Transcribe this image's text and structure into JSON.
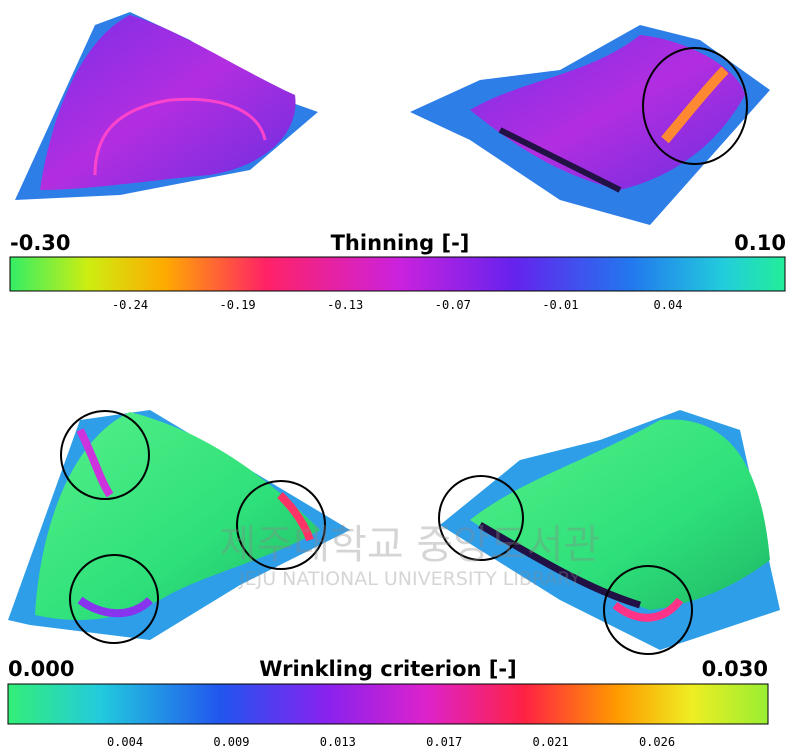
{
  "thinning": {
    "min_label": "-0.30",
    "title": "Thinning [-]",
    "max_label": "0.10",
    "ticks": [
      "-0.24",
      "-0.19",
      "-0.13",
      "-0.07",
      "-0.01",
      "0.04"
    ]
  },
  "wrinkling": {
    "min_label": "0.000",
    "title": "Wrinkling criterion [-]",
    "max_label": "0.030",
    "ticks": [
      "0.004",
      "0.009",
      "0.013",
      "0.017",
      "0.021",
      "0.026"
    ]
  },
  "watermark": {
    "korean": "제주대학교 중앙도서관",
    "english": "JEJU NATIONAL UNIVERSITY LIBRARY"
  }
}
